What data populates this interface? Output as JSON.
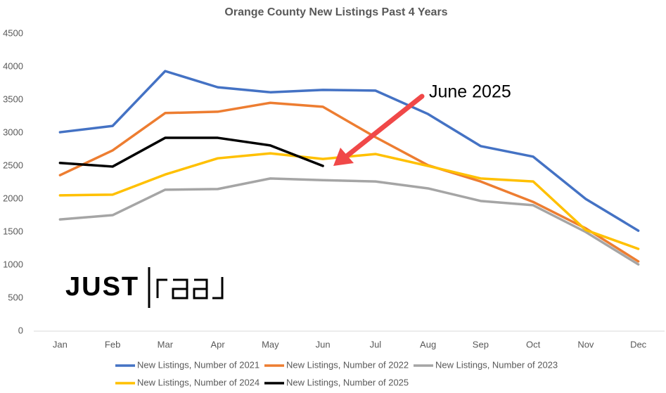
{
  "chart_data": {
    "type": "line",
    "title": "Orange County New Listings Past 4 Years",
    "categories": [
      "Jan",
      "Feb",
      "Mar",
      "Apr",
      "May",
      "Jun",
      "Jul",
      "Aug",
      "Sep",
      "Oct",
      "Nov",
      "Dec"
    ],
    "series": [
      {
        "name": "New Listings, Number of 2021",
        "color": "#4472c4",
        "values": [
          3010,
          3105,
          3935,
          3690,
          3615,
          3650,
          3640,
          3285,
          2800,
          2640,
          2000,
          1520
        ]
      },
      {
        "name": "New Listings, Number of 2022",
        "color": "#ed7d31",
        "values": [
          2360,
          2735,
          3300,
          3320,
          3455,
          3395,
          2935,
          2510,
          2265,
          1955,
          1555,
          1055
        ]
      },
      {
        "name": "New Listings, Number of 2023",
        "color": "#a5a5a5",
        "values": [
          1690,
          1755,
          2140,
          2150,
          2310,
          2285,
          2265,
          2160,
          1970,
          1905,
          1500,
          1010
        ]
      },
      {
        "name": "New Listings, Number of 2024",
        "color": "#ffc000",
        "values": [
          2055,
          2065,
          2370,
          2615,
          2690,
          2605,
          2680,
          2500,
          2310,
          2265,
          1530,
          1245
        ]
      },
      {
        "name": "New Listings, Number of 2025",
        "color": "#000000",
        "values": [
          2545,
          2490,
          2925,
          2925,
          2810,
          2500,
          null,
          null,
          null,
          null,
          null,
          null
        ]
      }
    ],
    "ylim": [
      0,
      4500
    ],
    "yticks": [
      0,
      500,
      1000,
      1500,
      2000,
      2500,
      3000,
      3500,
      4000,
      4500
    ],
    "grid": false,
    "legend": "bottom",
    "annotation": "June 2025",
    "logo": "JUST"
  }
}
